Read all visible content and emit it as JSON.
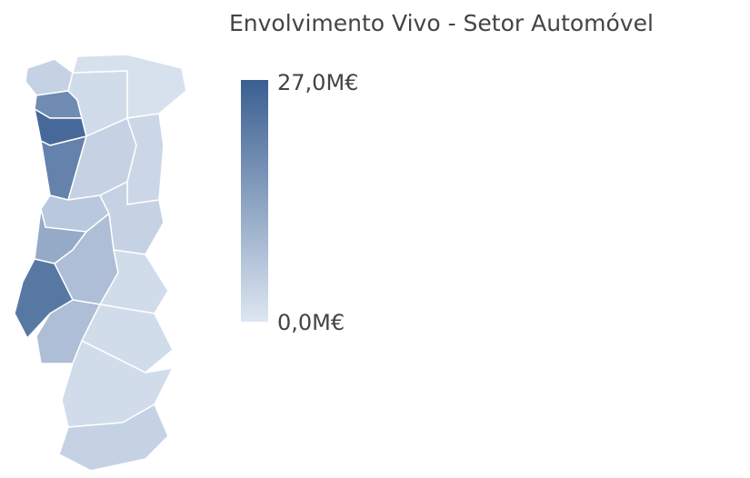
{
  "chart_data": {
    "type": "choropleth",
    "title": "Envolvimento Vivo - Setor Automóvel",
    "values": [
      4,
      18,
      25,
      2,
      1,
      20,
      4,
      3,
      6,
      4,
      12,
      8,
      2,
      22,
      8,
      2,
      2,
      4
    ],
    "scale": {
      "min": {
        "value": 0,
        "label": "0,0M€"
      },
      "max": {
        "value": 27,
        "label": "27,0M€"
      },
      "colors": [
        "#dde6f2",
        "#3a5f92"
      ]
    }
  }
}
